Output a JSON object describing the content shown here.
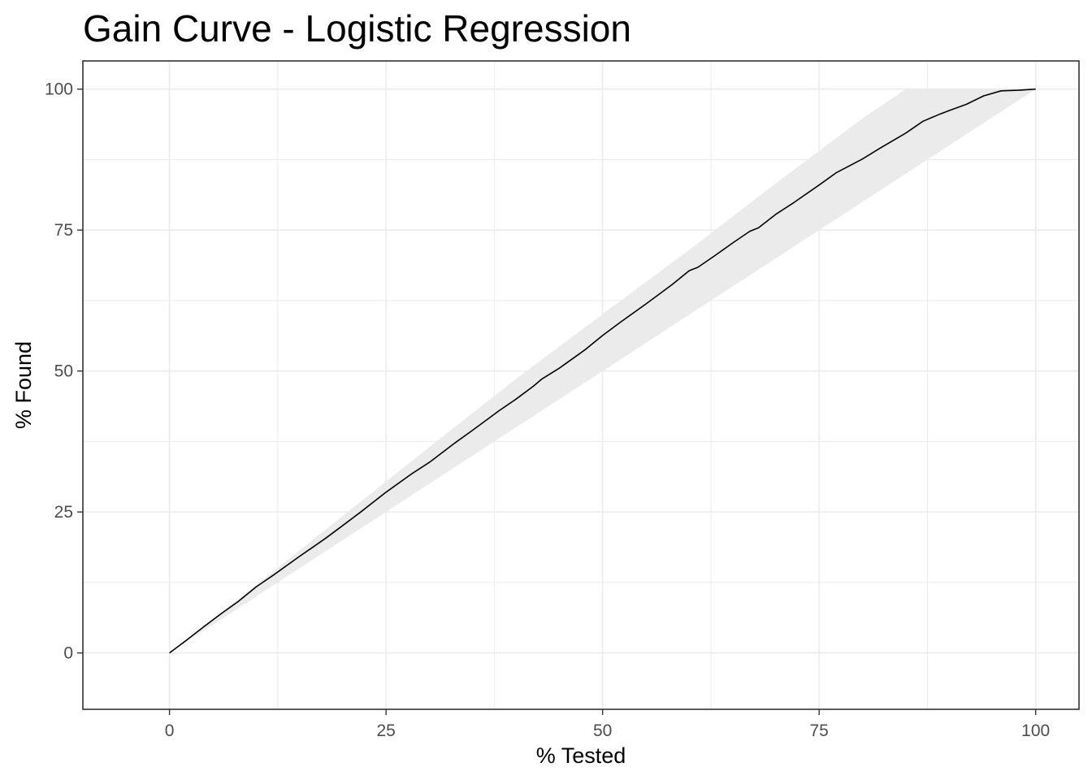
{
  "chart_data": {
    "type": "line",
    "title": "Gain Curve - Logistic Regression",
    "xlabel": "% Tested",
    "ylabel": "% Found",
    "xlim": [
      -10,
      105
    ],
    "ylim": [
      -10,
      105
    ],
    "x_ticks": [
      0,
      25,
      50,
      75,
      100
    ],
    "y_ticks": [
      0,
      25,
      50,
      75,
      100
    ],
    "grid": true,
    "colors": {
      "background": "#ffffff",
      "grid": "#ebebeb",
      "band": "#ebebeb",
      "line": "#000000",
      "border": "#333333"
    },
    "band": {
      "x": [
        0,
        10,
        20,
        30,
        40,
        50,
        60,
        70,
        80,
        85,
        90,
        100
      ],
      "lower": [
        0,
        10,
        20,
        30,
        40,
        50,
        60,
        70,
        80,
        85,
        90,
        100
      ],
      "upper": [
        0,
        12,
        24.3,
        36.5,
        48.6,
        60.1,
        71.5,
        83.3,
        94.8,
        100,
        100,
        100
      ]
    },
    "series": [
      {
        "x": [
          0,
          2,
          4,
          6,
          8,
          10,
          12,
          15,
          18,
          20,
          22,
          25,
          28,
          30,
          33,
          35,
          38,
          40,
          42,
          43,
          45,
          48,
          50,
          52,
          55,
          58,
          60,
          61,
          63,
          65,
          67,
          68,
          70,
          72,
          75,
          77,
          80,
          82,
          85,
          87,
          89,
          90,
          92,
          94,
          96,
          98,
          100
        ],
        "y": [
          0,
          2.3,
          4.7,
          7,
          9.2,
          11.7,
          13.8,
          17.1,
          20.3,
          22.6,
          24.9,
          28.5,
          31.8,
          33.8,
          37.3,
          39.5,
          42.9,
          45,
          47.3,
          48.6,
          50.5,
          53.8,
          56.3,
          58.6,
          61.9,
          65.3,
          67.8,
          68.4,
          70.5,
          72.7,
          74.8,
          75.4,
          77.8,
          79.8,
          83,
          85.2,
          87.6,
          89.5,
          92.2,
          94.3,
          95.6,
          96.2,
          97.3,
          98.8,
          99.7,
          99.8,
          100
        ]
      }
    ]
  }
}
